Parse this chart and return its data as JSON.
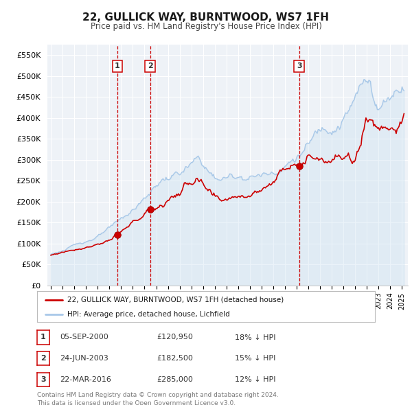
{
  "title": "22, GULLICK WAY, BURNTWOOD, WS7 1FH",
  "subtitle": "Price paid vs. HM Land Registry's House Price Index (HPI)",
  "hpi_color": "#a8c8e8",
  "hpi_fill_color": "#c8dff0",
  "price_color": "#cc0000",
  "marker_color": "#cc0000",
  "background_color": "#ffffff",
  "plot_bg_color": "#eef2f7",
  "grid_color": "#ffffff",
  "ylim": [
    0,
    575000
  ],
  "yticks": [
    0,
    50000,
    100000,
    150000,
    200000,
    250000,
    300000,
    350000,
    400000,
    450000,
    500000,
    550000
  ],
  "ytick_labels": [
    "£0",
    "£50K",
    "£100K",
    "£150K",
    "£200K",
    "£250K",
    "£300K",
    "£350K",
    "£400K",
    "£450K",
    "£500K",
    "£550K"
  ],
  "xlim_start": 1994.7,
  "xlim_end": 2025.5,
  "transactions": [
    {
      "num": 1,
      "date_val": 2000.68,
      "price": 120950
    },
    {
      "num": 2,
      "date_val": 2003.48,
      "price": 182500
    },
    {
      "num": 3,
      "date_val": 2016.22,
      "price": 285000
    }
  ],
  "vline_dates": [
    2000.68,
    2003.48,
    2016.22
  ],
  "legend_price_label": "22, GULLICK WAY, BURNTWOOD, WS7 1FH (detached house)",
  "legend_hpi_label": "HPI: Average price, detached house, Lichfield",
  "table_rows": [
    {
      "num": "1",
      "date": "05-SEP-2000",
      "price": "£120,950",
      "pct": "18% ↓ HPI"
    },
    {
      "num": "2",
      "date": "24-JUN-2003",
      "price": "£182,500",
      "pct": "15% ↓ HPI"
    },
    {
      "num": "3",
      "date": "22-MAR-2016",
      "price": "£285,000",
      "pct": "12% ↓ HPI"
    }
  ],
  "footer": "Contains HM Land Registry data © Crown copyright and database right 2024.\nThis data is licensed under the Open Government Licence v3.0."
}
